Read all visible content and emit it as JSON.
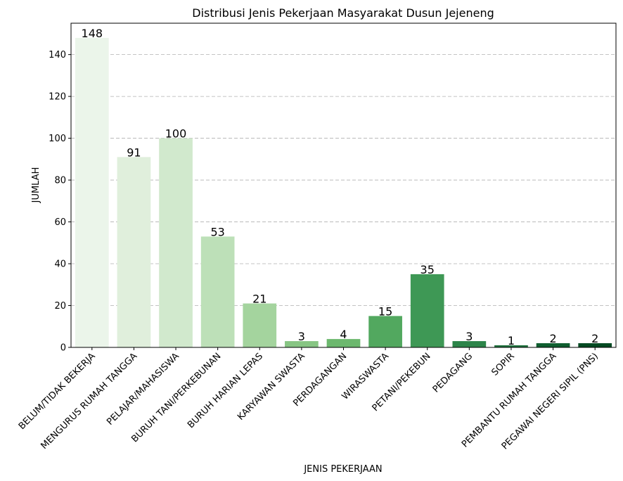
{
  "chart_data": {
    "type": "bar",
    "title": "Distribusi Jenis Pekerjaan Masyarakat Dusun Jejeneng",
    "xlabel": "JENIS PEKERJAAN",
    "ylabel": "JUMLAH",
    "ylim": [
      0,
      155
    ],
    "yticks": [
      0,
      20,
      40,
      60,
      80,
      100,
      120,
      140
    ],
    "grid": "y-dashed",
    "categories": [
      "BELUM/TIDAK BEKERJA",
      "MENGURUS RUMAH TANGGA",
      "PELAJAR/MAHASISWA",
      "BURUH TANI/PERKEBUNAN",
      "BURUH HARIAN LEPAS",
      "KARYAWAN SWASTA",
      "PERDAGANGAN",
      "WIRASWASTA",
      "PETANI/PEKEBUN",
      "PEDAGANG",
      "SOPIR",
      "PEMBANTU RUMAH TANGGA",
      "PEGAWAI NEGERI SIPIL (PNS)"
    ],
    "values": [
      148,
      91,
      100,
      53,
      21,
      3,
      4,
      15,
      35,
      3,
      1,
      2,
      2
    ],
    "colors": [
      "#ebf5ea",
      "#e0efdc",
      "#d1e9cd",
      "#bde0b8",
      "#a4d49e",
      "#87c583",
      "#6cb86e",
      "#52a85f",
      "#3e9855",
      "#2c8449",
      "#1e703c",
      "#0f5e2f",
      "#044a22"
    ]
  }
}
